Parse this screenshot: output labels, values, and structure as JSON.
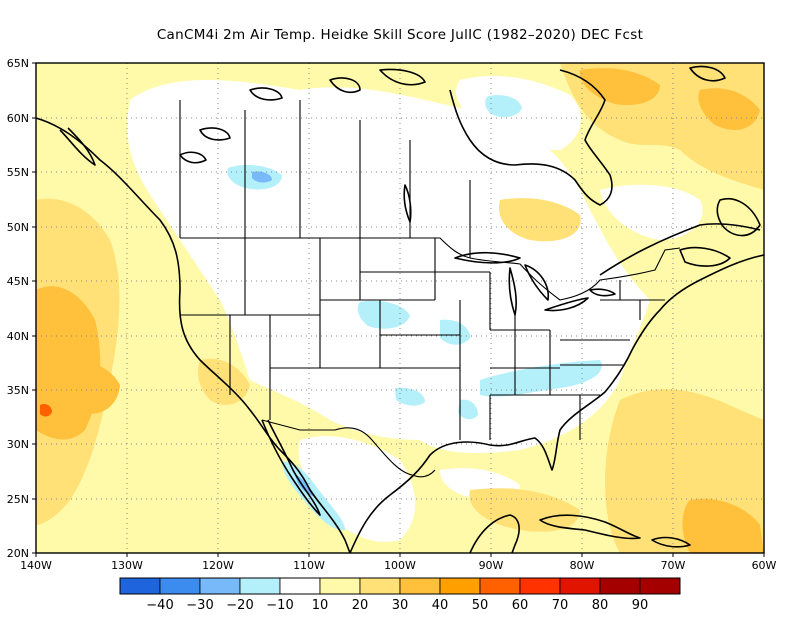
{
  "title": "CanCM4i  2m Air Temp. Heidke Skill Score JulIC (1982–2020) DEC Fcst",
  "lat_labels": [
    "65N",
    "60N",
    "55N",
    "50N",
    "45N",
    "40N",
    "35N",
    "30N",
    "25N",
    "20N"
  ],
  "lon_labels": [
    "140W",
    "130W",
    "120W",
    "110W",
    "100W",
    "90W",
    "80W",
    "70W",
    "60W"
  ],
  "colorbar": {
    "labels": [
      "−40",
      "−30",
      "−20",
      "−10",
      "10",
      "20",
      "30",
      "40",
      "50",
      "60",
      "70",
      "80",
      "90"
    ],
    "colors": [
      "#1e64dc",
      "#3c8cf0",
      "#78b9fa",
      "#b4f0fa",
      "#ffffff",
      "#fffaaa",
      "#ffe178",
      "#ffc13c",
      "#ffa000",
      "#ff6000",
      "#ff3200",
      "#e11400",
      "#a50000"
    ]
  },
  "palette": {
    "white": "#ffffff",
    "pale_yellow": "#fffaaa",
    "light_orange": "#ffe178",
    "orange": "#ffc13c",
    "dark_orange": "#ffa000",
    "red_orange": "#ff6000",
    "pale_blue": "#b4f0fa",
    "light_blue": "#78b9fa"
  }
}
